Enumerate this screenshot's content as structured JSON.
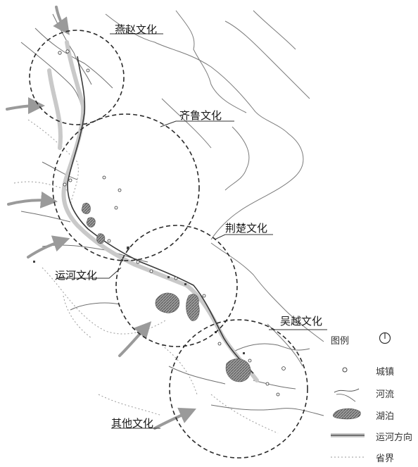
{
  "map": {
    "regions": [
      {
        "id": "yanzhao",
        "label": "燕赵文化"
      },
      {
        "id": "qilu",
        "label": "齐鲁文化"
      },
      {
        "id": "jingchu",
        "label": "荆楚文化"
      },
      {
        "id": "yunhe",
        "label": "运河文化"
      },
      {
        "id": "wuyue",
        "label": "吴越文化"
      },
      {
        "id": "qita",
        "label": "其他文化"
      }
    ]
  },
  "legend": {
    "title": "图例",
    "north_icon": "north-arrow-icon",
    "items": [
      {
        "icon": "town-icon",
        "label": "城镇"
      },
      {
        "icon": "river-icon",
        "label": "河流"
      },
      {
        "icon": "lake-icon",
        "label": "湖泊"
      },
      {
        "icon": "canal-direction-icon",
        "label": "运河方向"
      },
      {
        "icon": "province-boundary-icon",
        "label": "省界"
      }
    ]
  },
  "colors": {
    "circle": "#2b2b2b",
    "canal": "#8a8a8a",
    "arrow": "#9a9a9a",
    "river": "#6f6f6f",
    "lake": "#7d7d7d",
    "boundary": "#9a9a9a"
  }
}
